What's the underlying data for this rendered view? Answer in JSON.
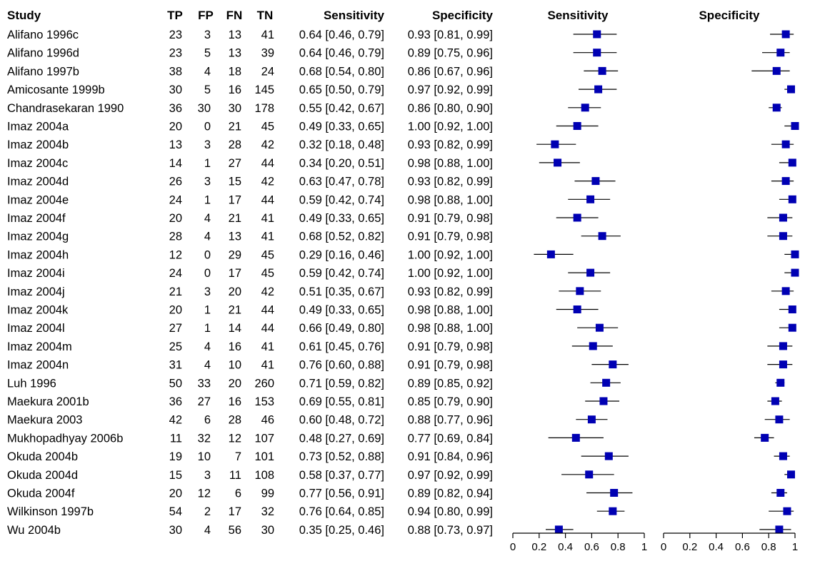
{
  "chart_data": {
    "type": "forest",
    "columns": [
      "Study",
      "TP",
      "FP",
      "FN",
      "TN",
      "Sensitivity",
      "Specificity"
    ],
    "plot_titles": [
      "Sensitivity",
      "Specificity"
    ],
    "xlim": [
      0,
      1
    ],
    "xticks": [
      "0",
      "0.2",
      "0.4",
      "0.6",
      "0.8",
      "1"
    ],
    "marker_color": "#0000b3",
    "rows": [
      {
        "study": "Alifano 1996c",
        "tp": 23,
        "fp": 3,
        "fn": 13,
        "tn": 41,
        "sens": 0.64,
        "sens_lo": 0.46,
        "sens_hi": 0.79,
        "spec": 0.93,
        "spec_lo": 0.81,
        "spec_hi": 0.99,
        "sens_text": "0.64 [0.46, 0.79]",
        "spec_text": "0.93 [0.81, 0.99]"
      },
      {
        "study": "Alifano 1996d",
        "tp": 23,
        "fp": 5,
        "fn": 13,
        "tn": 39,
        "sens": 0.64,
        "sens_lo": 0.46,
        "sens_hi": 0.79,
        "spec": 0.89,
        "spec_lo": 0.75,
        "spec_hi": 0.96,
        "sens_text": "0.64 [0.46, 0.79]",
        "spec_text": "0.89 [0.75, 0.96]"
      },
      {
        "study": "Alifano 1997b",
        "tp": 38,
        "fp": 4,
        "fn": 18,
        "tn": 24,
        "sens": 0.68,
        "sens_lo": 0.54,
        "sens_hi": 0.8,
        "spec": 0.86,
        "spec_lo": 0.67,
        "spec_hi": 0.96,
        "sens_text": "0.68 [0.54, 0.80]",
        "spec_text": "0.86 [0.67, 0.96]"
      },
      {
        "study": "Amicosante 1999b",
        "tp": 30,
        "fp": 5,
        "fn": 16,
        "tn": 145,
        "sens": 0.65,
        "sens_lo": 0.5,
        "sens_hi": 0.79,
        "spec": 0.97,
        "spec_lo": 0.92,
        "spec_hi": 0.99,
        "sens_text": "0.65 [0.50, 0.79]",
        "spec_text": "0.97 [0.92, 0.99]"
      },
      {
        "study": "Chandrasekaran 1990",
        "tp": 36,
        "fp": 30,
        "fn": 30,
        "tn": 178,
        "sens": 0.55,
        "sens_lo": 0.42,
        "sens_hi": 0.67,
        "spec": 0.86,
        "spec_lo": 0.8,
        "spec_hi": 0.9,
        "sens_text": "0.55 [0.42, 0.67]",
        "spec_text": "0.86 [0.80, 0.90]"
      },
      {
        "study": "Imaz 2004a",
        "tp": 20,
        "fp": 0,
        "fn": 21,
        "tn": 45,
        "sens": 0.49,
        "sens_lo": 0.33,
        "sens_hi": 0.65,
        "spec": 1.0,
        "spec_lo": 0.92,
        "spec_hi": 1.0,
        "sens_text": "0.49 [0.33, 0.65]",
        "spec_text": "1.00 [0.92, 1.00]"
      },
      {
        "study": "Imaz 2004b",
        "tp": 13,
        "fp": 3,
        "fn": 28,
        "tn": 42,
        "sens": 0.32,
        "sens_lo": 0.18,
        "sens_hi": 0.48,
        "spec": 0.93,
        "spec_lo": 0.82,
        "spec_hi": 0.99,
        "sens_text": "0.32 [0.18, 0.48]",
        "spec_text": "0.93 [0.82, 0.99]"
      },
      {
        "study": "Imaz 2004c",
        "tp": 14,
        "fp": 1,
        "fn": 27,
        "tn": 44,
        "sens": 0.34,
        "sens_lo": 0.2,
        "sens_hi": 0.51,
        "spec": 0.98,
        "spec_lo": 0.88,
        "spec_hi": 1.0,
        "sens_text": "0.34 [0.20, 0.51]",
        "spec_text": "0.98 [0.88, 1.00]"
      },
      {
        "study": "Imaz 2004d",
        "tp": 26,
        "fp": 3,
        "fn": 15,
        "tn": 42,
        "sens": 0.63,
        "sens_lo": 0.47,
        "sens_hi": 0.78,
        "spec": 0.93,
        "spec_lo": 0.82,
        "spec_hi": 0.99,
        "sens_text": "0.63 [0.47, 0.78]",
        "spec_text": "0.93 [0.82, 0.99]"
      },
      {
        "study": "Imaz 2004e",
        "tp": 24,
        "fp": 1,
        "fn": 17,
        "tn": 44,
        "sens": 0.59,
        "sens_lo": 0.42,
        "sens_hi": 0.74,
        "spec": 0.98,
        "spec_lo": 0.88,
        "spec_hi": 1.0,
        "sens_text": "0.59 [0.42, 0.74]",
        "spec_text": "0.98 [0.88, 1.00]"
      },
      {
        "study": "Imaz 2004f",
        "tp": 20,
        "fp": 4,
        "fn": 21,
        "tn": 41,
        "sens": 0.49,
        "sens_lo": 0.33,
        "sens_hi": 0.65,
        "spec": 0.91,
        "spec_lo": 0.79,
        "spec_hi": 0.98,
        "sens_text": "0.49 [0.33, 0.65]",
        "spec_text": "0.91 [0.79, 0.98]"
      },
      {
        "study": "Imaz 2004g",
        "tp": 28,
        "fp": 4,
        "fn": 13,
        "tn": 41,
        "sens": 0.68,
        "sens_lo": 0.52,
        "sens_hi": 0.82,
        "spec": 0.91,
        "spec_lo": 0.79,
        "spec_hi": 0.98,
        "sens_text": "0.68 [0.52, 0.82]",
        "spec_text": "0.91 [0.79, 0.98]"
      },
      {
        "study": "Imaz 2004h",
        "tp": 12,
        "fp": 0,
        "fn": 29,
        "tn": 45,
        "sens": 0.29,
        "sens_lo": 0.16,
        "sens_hi": 0.46,
        "spec": 1.0,
        "spec_lo": 0.92,
        "spec_hi": 1.0,
        "sens_text": "0.29 [0.16, 0.46]",
        "spec_text": "1.00 [0.92, 1.00]"
      },
      {
        "study": "Imaz 2004i",
        "tp": 24,
        "fp": 0,
        "fn": 17,
        "tn": 45,
        "sens": 0.59,
        "sens_lo": 0.42,
        "sens_hi": 0.74,
        "spec": 1.0,
        "spec_lo": 0.92,
        "spec_hi": 1.0,
        "sens_text": "0.59 [0.42, 0.74]",
        "spec_text": "1.00 [0.92, 1.00]"
      },
      {
        "study": "Imaz 2004j",
        "tp": 21,
        "fp": 3,
        "fn": 20,
        "tn": 42,
        "sens": 0.51,
        "sens_lo": 0.35,
        "sens_hi": 0.67,
        "spec": 0.93,
        "spec_lo": 0.82,
        "spec_hi": 0.99,
        "sens_text": "0.51 [0.35, 0.67]",
        "spec_text": "0.93 [0.82, 0.99]"
      },
      {
        "study": "Imaz 2004k",
        "tp": 20,
        "fp": 1,
        "fn": 21,
        "tn": 44,
        "sens": 0.49,
        "sens_lo": 0.33,
        "sens_hi": 0.65,
        "spec": 0.98,
        "spec_lo": 0.88,
        "spec_hi": 1.0,
        "sens_text": "0.49 [0.33, 0.65]",
        "spec_text": "0.98 [0.88, 1.00]"
      },
      {
        "study": "Imaz 2004l",
        "tp": 27,
        "fp": 1,
        "fn": 14,
        "tn": 44,
        "sens": 0.66,
        "sens_lo": 0.49,
        "sens_hi": 0.8,
        "spec": 0.98,
        "spec_lo": 0.88,
        "spec_hi": 1.0,
        "sens_text": "0.66 [0.49, 0.80]",
        "spec_text": "0.98 [0.88, 1.00]"
      },
      {
        "study": "Imaz 2004m",
        "tp": 25,
        "fp": 4,
        "fn": 16,
        "tn": 41,
        "sens": 0.61,
        "sens_lo": 0.45,
        "sens_hi": 0.76,
        "spec": 0.91,
        "spec_lo": 0.79,
        "spec_hi": 0.98,
        "sens_text": "0.61 [0.45, 0.76]",
        "spec_text": "0.91 [0.79, 0.98]"
      },
      {
        "study": "Imaz 2004n",
        "tp": 31,
        "fp": 4,
        "fn": 10,
        "tn": 41,
        "sens": 0.76,
        "sens_lo": 0.6,
        "sens_hi": 0.88,
        "spec": 0.91,
        "spec_lo": 0.79,
        "spec_hi": 0.98,
        "sens_text": "0.76 [0.60, 0.88]",
        "spec_text": "0.91 [0.79, 0.98]"
      },
      {
        "study": "Luh 1996",
        "tp": 50,
        "fp": 33,
        "fn": 20,
        "tn": 260,
        "sens": 0.71,
        "sens_lo": 0.59,
        "sens_hi": 0.82,
        "spec": 0.89,
        "spec_lo": 0.85,
        "spec_hi": 0.92,
        "sens_text": "0.71 [0.59, 0.82]",
        "spec_text": "0.89 [0.85, 0.92]"
      },
      {
        "study": "Maekura 2001b",
        "tp": 36,
        "fp": 27,
        "fn": 16,
        "tn": 153,
        "sens": 0.69,
        "sens_lo": 0.55,
        "sens_hi": 0.81,
        "spec": 0.85,
        "spec_lo": 0.79,
        "spec_hi": 0.9,
        "sens_text": "0.69 [0.55, 0.81]",
        "spec_text": "0.85 [0.79, 0.90]"
      },
      {
        "study": "Maekura 2003",
        "tp": 42,
        "fp": 6,
        "fn": 28,
        "tn": 46,
        "sens": 0.6,
        "sens_lo": 0.48,
        "sens_hi": 0.72,
        "spec": 0.88,
        "spec_lo": 0.77,
        "spec_hi": 0.96,
        "sens_text": "0.60 [0.48, 0.72]",
        "spec_text": "0.88 [0.77, 0.96]"
      },
      {
        "study": "Mukhopadhyay 2006b",
        "tp": 11,
        "fp": 32,
        "fn": 12,
        "tn": 107,
        "sens": 0.48,
        "sens_lo": 0.27,
        "sens_hi": 0.69,
        "spec": 0.77,
        "spec_lo": 0.69,
        "spec_hi": 0.84,
        "sens_text": "0.48 [0.27, 0.69]",
        "spec_text": "0.77 [0.69, 0.84]"
      },
      {
        "study": "Okuda 2004b",
        "tp": 19,
        "fp": 10,
        "fn": 7,
        "tn": 101,
        "sens": 0.73,
        "sens_lo": 0.52,
        "sens_hi": 0.88,
        "spec": 0.91,
        "spec_lo": 0.84,
        "spec_hi": 0.96,
        "sens_text": "0.73 [0.52, 0.88]",
        "spec_text": "0.91 [0.84, 0.96]"
      },
      {
        "study": "Okuda 2004d",
        "tp": 15,
        "fp": 3,
        "fn": 11,
        "tn": 108,
        "sens": 0.58,
        "sens_lo": 0.37,
        "sens_hi": 0.77,
        "spec": 0.97,
        "spec_lo": 0.92,
        "spec_hi": 0.99,
        "sens_text": "0.58 [0.37, 0.77]",
        "spec_text": "0.97 [0.92, 0.99]"
      },
      {
        "study": "Okuda 2004f",
        "tp": 20,
        "fp": 12,
        "fn": 6,
        "tn": 99,
        "sens": 0.77,
        "sens_lo": 0.56,
        "sens_hi": 0.91,
        "spec": 0.89,
        "spec_lo": 0.82,
        "spec_hi": 0.94,
        "sens_text": "0.77 [0.56, 0.91]",
        "spec_text": "0.89 [0.82, 0.94]"
      },
      {
        "study": "Wilkinson 1997b",
        "tp": 54,
        "fp": 2,
        "fn": 17,
        "tn": 32,
        "sens": 0.76,
        "sens_lo": 0.64,
        "sens_hi": 0.85,
        "spec": 0.94,
        "spec_lo": 0.8,
        "spec_hi": 0.99,
        "sens_text": "0.76 [0.64, 0.85]",
        "spec_text": "0.94 [0.80, 0.99]"
      },
      {
        "study": "Wu 2004b",
        "tp": 30,
        "fp": 4,
        "fn": 56,
        "tn": 30,
        "sens": 0.35,
        "sens_lo": 0.25,
        "sens_hi": 0.46,
        "spec": 0.88,
        "spec_lo": 0.73,
        "spec_hi": 0.97,
        "sens_text": "0.35 [0.25, 0.46]",
        "spec_text": "0.88 [0.73, 0.97]"
      }
    ]
  }
}
